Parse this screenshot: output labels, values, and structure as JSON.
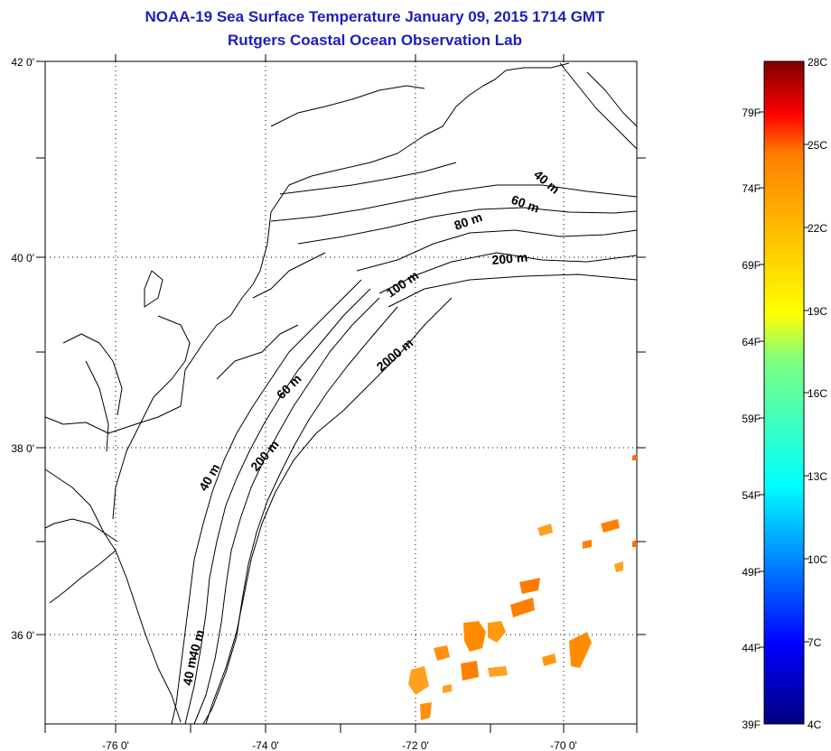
{
  "title": "NOAA-19 Sea Surface Temperature January 09, 2015 1714 GMT",
  "subtitle": "Rutgers Coastal Ocean Observation Lab",
  "map": {
    "lon_labels": [
      "-76 0'",
      "-74 0'",
      "-72 0'",
      "-70 0'"
    ],
    "lat_labels": [
      "42 0'",
      "40 0'",
      "38 0'",
      "36 0'"
    ],
    "lon_range": [
      -77,
      -69
    ],
    "lat_range": [
      35,
      42
    ],
    "depth_labels": [
      "40 m",
      "60 m",
      "80 m",
      "200 m",
      "100 m",
      "2000 m",
      "60 m",
      "40 m",
      "200 m",
      "40 m",
      "40 m"
    ]
  },
  "colorbar": {
    "celsius_labels": [
      "28C",
      "25C",
      "22C",
      "19C",
      "16C",
      "13C",
      "10C",
      "7C",
      "4C"
    ],
    "fahrenheit_labels": [
      "79F",
      "74F",
      "69F",
      "64F",
      "59F",
      "54F",
      "49F",
      "44F",
      "39F"
    ],
    "min_c": 4,
    "max_c": 28,
    "colors": [
      "#00007f",
      "#0000ff",
      "#007fff",
      "#00ffff",
      "#7fff7f",
      "#ffff00",
      "#ff7f00",
      "#ff0000",
      "#7f0000"
    ]
  }
}
